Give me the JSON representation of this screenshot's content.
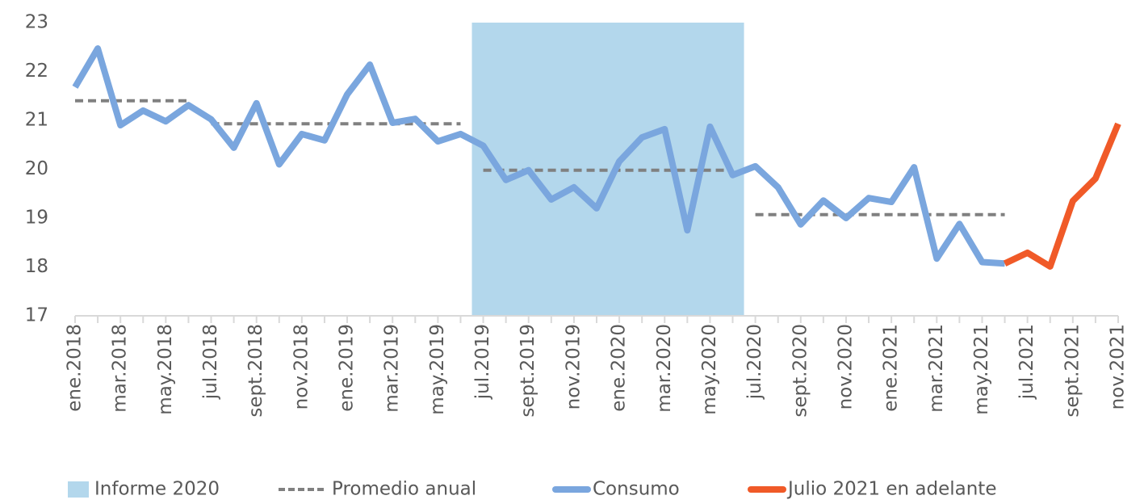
{
  "chart_data": {
    "type": "line",
    "categories": [
      "ene.2018",
      null,
      "mar.2018",
      null,
      "may.2018",
      null,
      "jul.2018",
      null,
      "sept.2018",
      null,
      "nov.2018",
      null,
      "ene.2019",
      null,
      "mar.2019",
      null,
      "may.2019",
      null,
      "jul.2019",
      null,
      "sept.2019",
      null,
      "nov.2019",
      null,
      "ene.2020",
      null,
      "mar.2020",
      null,
      "may.2020",
      null,
      "jul.2020",
      null,
      "sept.2020",
      null,
      "nov.2020",
      null,
      "ene.2021",
      null,
      "mar.2021",
      null,
      "may.2021",
      null,
      "jul.2021",
      null,
      "sept.2021",
      null,
      "nov.2021"
    ],
    "ylim": [
      17,
      23
    ],
    "yticks": [
      17,
      18,
      19,
      20,
      21,
      22,
      23
    ],
    "highlight": {
      "name": "Informe 2020",
      "start_index": 18,
      "end_index": 29,
      "color": "#b3d7ec"
    },
    "legend": "bottom",
    "series": [
      {
        "name": "Promedio anual",
        "color": "#808080",
        "dashed": true,
        "values": [
          21.4,
          21.4,
          21.4,
          21.4,
          21.4,
          21.4,
          20.93,
          20.93,
          20.93,
          20.93,
          20.93,
          20.93,
          20.93,
          20.93,
          20.93,
          20.93,
          20.93,
          20.93,
          19.98,
          19.98,
          19.98,
          19.98,
          19.98,
          19.98,
          19.98,
          19.98,
          19.98,
          19.98,
          19.98,
          19.98,
          19.07,
          19.07,
          19.07,
          19.07,
          19.07,
          19.07,
          19.07,
          19.07,
          19.07,
          19.07,
          19.07,
          19.07,
          null,
          null,
          null,
          null,
          null
        ]
      },
      {
        "name": "Consumo",
        "color": "#7aa6de",
        "values": [
          21.68,
          22.47,
          20.9,
          21.2,
          20.98,
          21.31,
          21.02,
          20.44,
          21.35,
          20.1,
          20.72,
          20.59,
          21.53,
          22.14,
          20.95,
          21.03,
          20.57,
          20.72,
          20.48,
          19.78,
          19.98,
          19.38,
          19.63,
          19.2,
          20.16,
          20.65,
          20.82,
          18.75,
          20.87,
          19.88,
          20.06,
          19.63,
          18.87,
          19.36,
          19.0,
          19.41,
          19.33,
          20.04,
          18.17,
          18.88,
          18.1,
          18.07,
          null,
          null,
          null,
          null,
          null
        ]
      },
      {
        "name": "Julio 2021 en adelante",
        "color": "#f05a28",
        "values": [
          null,
          null,
          null,
          null,
          null,
          null,
          null,
          null,
          null,
          null,
          null,
          null,
          null,
          null,
          null,
          null,
          null,
          null,
          null,
          null,
          null,
          null,
          null,
          null,
          null,
          null,
          null,
          null,
          null,
          null,
          null,
          null,
          null,
          null,
          null,
          null,
          null,
          null,
          null,
          null,
          null,
          18.07,
          18.29,
          18.01,
          19.35,
          19.81,
          20.93
        ]
      }
    ]
  }
}
